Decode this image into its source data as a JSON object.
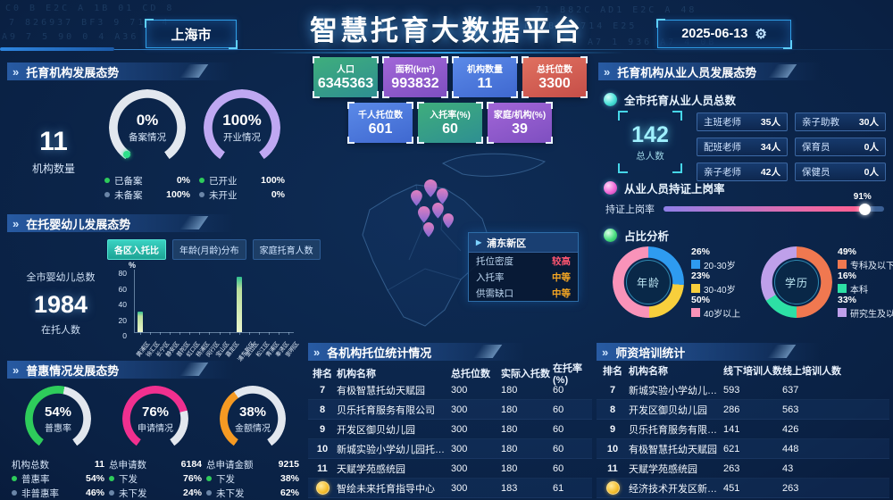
{
  "icons": {
    "double_chevron": "»",
    "gear": "⚙",
    "tooltip_arrow": "▶"
  },
  "decor_hex": [
    "C0  B  E2C  A  1B  01  CD  8",
    "7  826937  BF3  9  714  4",
    "A9   7   5  90  0  4  A36",
    "71  B82C  AD1  E2C  A  48",
    "09  E2  BF3  714  E25",
    "0  A7  1  936  A7  4  0B"
  ],
  "header": {
    "city": "上海市",
    "title": "智慧托育大数据平台",
    "date": "2025-06-13"
  },
  "stat_cards": [
    {
      "label": "人口",
      "value": "6345363",
      "colors": [
        "#3fae7c",
        "#2e8f92"
      ]
    },
    {
      "label": "面积(km²)",
      "value": "993832",
      "colors": [
        "#a266d8",
        "#7e4fc0"
      ]
    },
    {
      "label": "机构数量",
      "value": "11",
      "colors": [
        "#5b8ae8",
        "#3f68d0"
      ]
    },
    {
      "label": "总托位数",
      "value": "3300",
      "colors": [
        "#e07160",
        "#c64e48"
      ]
    },
    {
      "label": "千人托位数",
      "value": "601",
      "colors": [
        "#5b8ae8",
        "#3f68d0"
      ]
    },
    {
      "label": "入托率(%)",
      "value": "60",
      "colors": [
        "#3fae7c",
        "#2e8f92"
      ]
    },
    {
      "label": "家庭/机构(%)",
      "value": "39",
      "colors": [
        "#a266d8",
        "#7e4fc0"
      ]
    }
  ],
  "left": {
    "panel1": {
      "title": "托育机构发展态势",
      "count": "11",
      "count_label": "机构数量",
      "gauges": [
        {
          "pct": 0,
          "value": "0%",
          "label": "备案情况",
          "color": "#eef2f8",
          "legend": [
            {
              "dot": "#2ecc5b",
              "name": "已备案",
              "value": "0%"
            },
            {
              "dot": "#6b86a8",
              "name": "未备案",
              "value": "100%"
            }
          ]
        },
        {
          "pct": 100,
          "value": "100%",
          "label": "开业情况",
          "color": "#bfa8f2",
          "legend": [
            {
              "dot": "#2ecc5b",
              "name": "已开业",
              "value": "100%"
            },
            {
              "dot": "#6b86a8",
              "name": "未开业",
              "value": "0%"
            }
          ]
        }
      ]
    },
    "panel2": {
      "title": "在托婴幼儿发展态势",
      "tabs": [
        {
          "label": "各区入托比",
          "active": true
        },
        {
          "label": "年龄(月龄)分布",
          "active": false
        },
        {
          "label": "家庭托育人数",
          "active": false
        }
      ],
      "total_label": "全市婴幼儿总数",
      "total": "1984",
      "total_sub": "在托人数"
    },
    "panel3": {
      "title": "普惠情况发展态势",
      "gauges": [
        {
          "pct": 54,
          "value": "54%",
          "label": "普惠率",
          "color": "#2ecc5b",
          "rows": [
            {
              "dot": "",
              "name": "机构总数",
              "value": "11"
            },
            {
              "dot": "#2ecc5b",
              "name": "普惠率",
              "value": "54%"
            },
            {
              "dot": "#6b86a8",
              "name": "非普惠率",
              "value": "46%"
            }
          ]
        },
        {
          "pct": 76,
          "value": "76%",
          "label": "申请情况",
          "color": "#f0308f",
          "rows": [
            {
              "dot": "",
              "name": "总申请数",
              "value": "6184"
            },
            {
              "dot": "#2ecc5b",
              "name": "下发",
              "value": "76%"
            },
            {
              "dot": "#6b86a8",
              "name": "未下发",
              "value": "24%"
            }
          ]
        },
        {
          "pct": 38,
          "value": "38%",
          "label": "金额情况",
          "color": "#f59a23",
          "rows": [
            {
              "dot": "",
              "name": "总申请金额",
              "value": "9215"
            },
            {
              "dot": "#2ecc5b",
              "name": "下发",
              "value": "38%"
            },
            {
              "dot": "#6b86a8",
              "name": "未下发",
              "value": "62%"
            }
          ]
        }
      ]
    }
  },
  "map": {
    "district": "浦东新区",
    "tooltip": [
      {
        "name": "托位密度",
        "value": "较高",
        "color": "#ff5570"
      },
      {
        "name": "入托率",
        "value": "中等",
        "color": "#f5a623"
      },
      {
        "name": "供需缺口",
        "value": "中等",
        "color": "#f5a623"
      }
    ]
  },
  "center_table": {
    "title": "各机构托位统计情况",
    "headers": [
      "排名",
      "机构名称",
      "总托位数",
      "实际入托数",
      "在托率(%)"
    ],
    "rows": [
      {
        "rank": "7",
        "name": "有极智慧托幼天赋园",
        "cols": [
          "300",
          "180",
          "60"
        ]
      },
      {
        "rank": "8",
        "name": "贝乐托育服务有限公司",
        "cols": [
          "300",
          "180",
          "60"
        ]
      },
      {
        "rank": "9",
        "name": "开发区御贝幼儿园",
        "cols": [
          "300",
          "180",
          "60"
        ]
      },
      {
        "rank": "10",
        "name": "新城实验小学幼儿园托育中心",
        "cols": [
          "300",
          "180",
          "60"
        ]
      },
      {
        "rank": "11",
        "name": "天赋学苑感统园",
        "cols": [
          "300",
          "180",
          "60"
        ]
      },
      {
        "rank": "medal",
        "name": "智绘未来托育指导中心",
        "cols": [
          "300",
          "183",
          "61"
        ]
      }
    ]
  },
  "right": {
    "staff_title": "托育机构从业人员发展态势",
    "total_section": {
      "label": "全市托育从业人员总数",
      "total": "142",
      "total_label": "总人数"
    },
    "roles": [
      {
        "name": "主班老师",
        "value": "35人"
      },
      {
        "name": "亲子助教",
        "value": "30人"
      },
      {
        "name": "配班老师",
        "value": "34人"
      },
      {
        "name": "保育员",
        "value": "0人"
      },
      {
        "name": "亲子老师",
        "value": "42人"
      },
      {
        "name": "保健员",
        "value": "0人"
      }
    ],
    "cert_section": {
      "label": "从业人员持证上岗率",
      "bar_label": "持证上岗率",
      "pct": 91,
      "pct_label": "91%"
    },
    "ratio_label": "占比分析",
    "training_table": {
      "title": "师资培训统计",
      "headers": [
        "排名",
        "机构名称",
        "线下培训人数",
        "线上培训人数"
      ],
      "rows": [
        {
          "rank": "7",
          "name": "新城实验小学幼儿园托...",
          "cols": [
            "593",
            "637"
          ]
        },
        {
          "rank": "8",
          "name": "开发区御贝幼儿园",
          "cols": [
            "286",
            "563"
          ]
        },
        {
          "rank": "9",
          "name": "贝乐托育服务有限公司",
          "cols": [
            "141",
            "426"
          ]
        },
        {
          "rank": "10",
          "name": "有极智慧托幼天赋园",
          "cols": [
            "621",
            "448"
          ]
        },
        {
          "rank": "11",
          "name": "天赋学苑感统园",
          "cols": [
            "263",
            "43"
          ]
        },
        {
          "rank": "medal",
          "name": "经济技术开发区新城幼...",
          "cols": [
            "451",
            "263"
          ]
        }
      ]
    }
  },
  "chart_data": [
    {
      "id": "district_enrollment_ratio",
      "type": "bar",
      "title": "各区入托比",
      "ylabel": "%",
      "ylim": [
        0,
        80
      ],
      "yticks": [
        0,
        20,
        40,
        60,
        80
      ],
      "categories": [
        "黄浦区",
        "徐汇区",
        "长宁区",
        "静安区",
        "普陀区",
        "虹口区",
        "杨浦区",
        "闵行区",
        "宝山区",
        "嘉定区",
        "浦东新区",
        "金山区",
        "松江区",
        "青浦区",
        "奉贤区",
        "崇明区"
      ],
      "values": [
        26,
        0,
        0,
        0,
        0,
        0,
        0,
        0,
        0,
        0,
        71,
        0,
        0,
        0,
        0,
        0
      ]
    },
    {
      "id": "staff_age",
      "type": "pie",
      "center_label": "年龄",
      "slices": [
        {
          "label": "20-30岁",
          "value": 26,
          "color": "#2e9bf0"
        },
        {
          "label": "30-40岁",
          "value": 23,
          "color": "#f8cf3c"
        },
        {
          "label": "40岁以上",
          "value": 50,
          "color": "#f993b9"
        }
      ]
    },
    {
      "id": "staff_education",
      "type": "pie",
      "center_label": "学历",
      "slices": [
        {
          "label": "专科及以下",
          "value": 49,
          "color": "#f07850"
        },
        {
          "label": "本科",
          "value": 16,
          "color": "#2de0a5"
        },
        {
          "label": "研究生及以上",
          "value": 33,
          "color": "#bfa0ea"
        }
      ]
    }
  ]
}
